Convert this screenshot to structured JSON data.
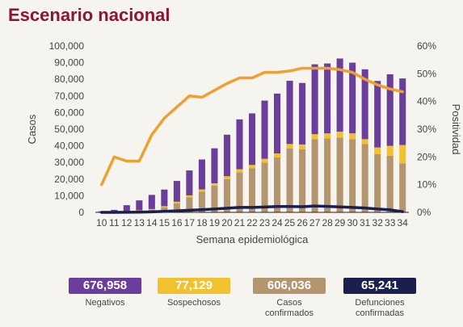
{
  "title": "Escenario nacional",
  "chart_data": {
    "type": "bar",
    "xlabel": "Semana epidemiológica",
    "ylabel": "Casos",
    "y2label": "Positividad",
    "categories": [
      "10",
      "11",
      "12",
      "13",
      "14",
      "15",
      "16",
      "17",
      "18",
      "19",
      "20",
      "21",
      "22",
      "23",
      "24",
      "25",
      "26",
      "27",
      "28",
      "29",
      "30",
      "31",
      "32",
      "33",
      "34"
    ],
    "ylim": [
      0,
      100000
    ],
    "y2lim": [
      0,
      60
    ],
    "yticks": [
      "0",
      "10,000",
      "20,000",
      "30,000",
      "40,000",
      "50,000",
      "60,000",
      "70,000",
      "80,000",
      "90,000",
      "100,000"
    ],
    "y2ticks": [
      "0%",
      "10%",
      "20%",
      "30%",
      "40%",
      "50%",
      "60%"
    ],
    "series": [
      {
        "name": "Negativos",
        "type": "bar",
        "color": "#6a3e9a",
        "values": [
          500,
          1200,
          3500,
          6000,
          8500,
          10000,
          12500,
          15000,
          18000,
          21000,
          25000,
          30000,
          31000,
          35000,
          36000,
          38000,
          37000,
          42000,
          42000,
          44000,
          42500,
          42000,
          40000,
          43000,
          40000
        ]
      },
      {
        "name": "Sospechosos",
        "type": "bar",
        "color": "#f2c12e",
        "values": [
          50,
          100,
          200,
          400,
          500,
          700,
          900,
          1200,
          1300,
          1500,
          1700,
          1900,
          2000,
          2200,
          2400,
          2600,
          2800,
          3000,
          3000,
          3500,
          3500,
          3000,
          4000,
          6000,
          11000
        ]
      },
      {
        "name": "Casos confirmados",
        "type": "bar",
        "color": "#b39670",
        "values": [
          50,
          200,
          600,
          800,
          1500,
          3000,
          5500,
          9000,
          12500,
          16000,
          20000,
          24000,
          26500,
          30000,
          33000,
          38500,
          38000,
          44000,
          44500,
          45000,
          44000,
          41000,
          35000,
          34000,
          29500
        ]
      },
      {
        "name": "Defunciones confirmadas",
        "type": "line",
        "color": "#1a1f4e",
        "values": [
          0,
          0,
          50,
          150,
          300,
          600,
          900,
          1300,
          1600,
          2000,
          2500,
          3000,
          3000,
          3200,
          3500,
          3500,
          3400,
          3800,
          3600,
          3300,
          3000,
          2600,
          2000,
          1500,
          400
        ]
      },
      {
        "name": "Positividad",
        "type": "line",
        "axis": "right",
        "color": "#f0a030",
        "values": [
          10,
          20,
          18.5,
          18.5,
          28,
          34,
          38,
          42,
          41.5,
          44,
          46.5,
          48.5,
          48.5,
          50.5,
          50.5,
          51,
          52,
          52,
          52,
          51.5,
          50.5,
          48,
          46,
          44.5,
          43.5
        ]
      }
    ]
  },
  "legend": [
    {
      "value": "676,958",
      "label": "Negativos",
      "color": "#6a3e9a"
    },
    {
      "value": "77,129",
      "label": "Sospechosos",
      "color": "#f2c12e"
    },
    {
      "value": "606,036",
      "label": "Casos\nconfirmados",
      "color": "#b39670"
    },
    {
      "value": "65,241",
      "label": "Defunciones\nconfirmadas",
      "color": "#1a1f4e"
    }
  ]
}
